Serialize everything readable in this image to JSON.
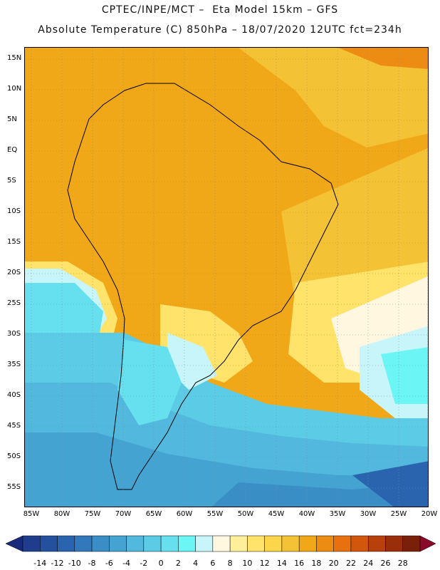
{
  "title_line1": "CPTEC/INPE/MCT –  Eta Model 15km – GFS",
  "title_line2": "Absolute Temperature (C) 850hPa – 18/07/2020 12UTC fct=234h",
  "latitude_labels": [
    "15N",
    "10N",
    "5N",
    "EQ",
    "5S",
    "10S",
    "15S",
    "20S",
    "25S",
    "30S",
    "35S",
    "40S",
    "45S",
    "50S",
    "55S"
  ],
  "longitude_labels": [
    "85W",
    "80W",
    "75W",
    "70W",
    "65W",
    "60W",
    "55W",
    "50W",
    "45W",
    "40W",
    "35W",
    "30W",
    "25W",
    "20W"
  ],
  "colorbar": {
    "ticks": [
      "-14",
      "-12",
      "-10",
      "-8",
      "-6",
      "-4",
      "-2",
      "0",
      "2",
      "4",
      "6",
      "8",
      "10",
      "12",
      "14",
      "16",
      "18",
      "20",
      "22",
      "24",
      "26",
      "28"
    ],
    "colors": [
      "#1f3d8c",
      "#24509e",
      "#2b64ae",
      "#3278ba",
      "#3a8ec6",
      "#45a3d2",
      "#52b8dd",
      "#5ccce6",
      "#66e0ee",
      "#6cf5f5",
      "#c8f5fa",
      "#fff7e0",
      "#ffef9a",
      "#ffe36a",
      "#fbd54a",
      "#f4c235",
      "#f0a818",
      "#ec8c12",
      "#e8700f",
      "#d2560c",
      "#b8400a",
      "#9a2d0a",
      "#7a1f0a"
    ],
    "low_arrow_color": "#1a2a7a",
    "high_arrow_color": "#8a0a2a"
  }
}
